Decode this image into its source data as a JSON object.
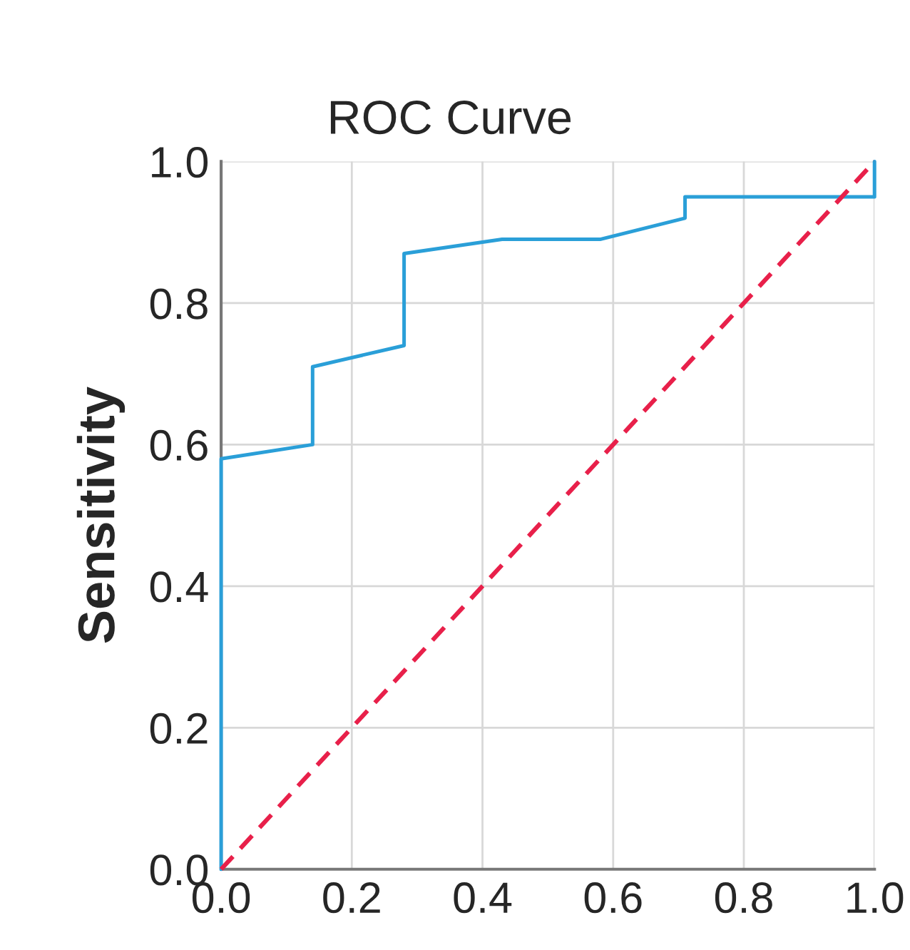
{
  "chart_data": {
    "type": "line",
    "title": "ROC Curve",
    "ylabel": "Sensitivity",
    "xlim": [
      0,
      1
    ],
    "ylim": [
      0,
      1
    ],
    "xticks": [
      {
        "value": 0,
        "label": "0.0"
      },
      {
        "value": 0.2,
        "label": "0.2"
      },
      {
        "value": 0.4,
        "label": "0.4"
      },
      {
        "value": 0.6,
        "label": "0.6"
      },
      {
        "value": 0.8,
        "label": "0.8"
      },
      {
        "value": 1,
        "label": "1.0"
      }
    ],
    "yticks": [
      {
        "value": 0,
        "label": "0.0"
      },
      {
        "value": 0.2,
        "label": "0.2"
      },
      {
        "value": 0.4,
        "label": "0.4"
      },
      {
        "value": 0.6,
        "label": "0.6"
      },
      {
        "value": 0.8,
        "label": "0.8"
      },
      {
        "value": 1,
        "label": "1.0"
      }
    ],
    "grid": true,
    "legend": false,
    "series": [
      {
        "color": "#2a9fd8",
        "line_style": "solid",
        "x": [
          0,
          0,
          0.14,
          0.14,
          0.28,
          0.28,
          0.43,
          0.58,
          0.71,
          0.71,
          1,
          1
        ],
        "values": [
          0,
          0.58,
          0.6,
          0.71,
          0.74,
          0.87,
          0.89,
          0.89,
          0.92,
          0.95,
          0.95,
          1
        ]
      },
      {
        "color": "#e8204a",
        "line_style": "dashed",
        "x": [
          0,
          1
        ],
        "values": [
          0,
          1
        ]
      }
    ]
  }
}
